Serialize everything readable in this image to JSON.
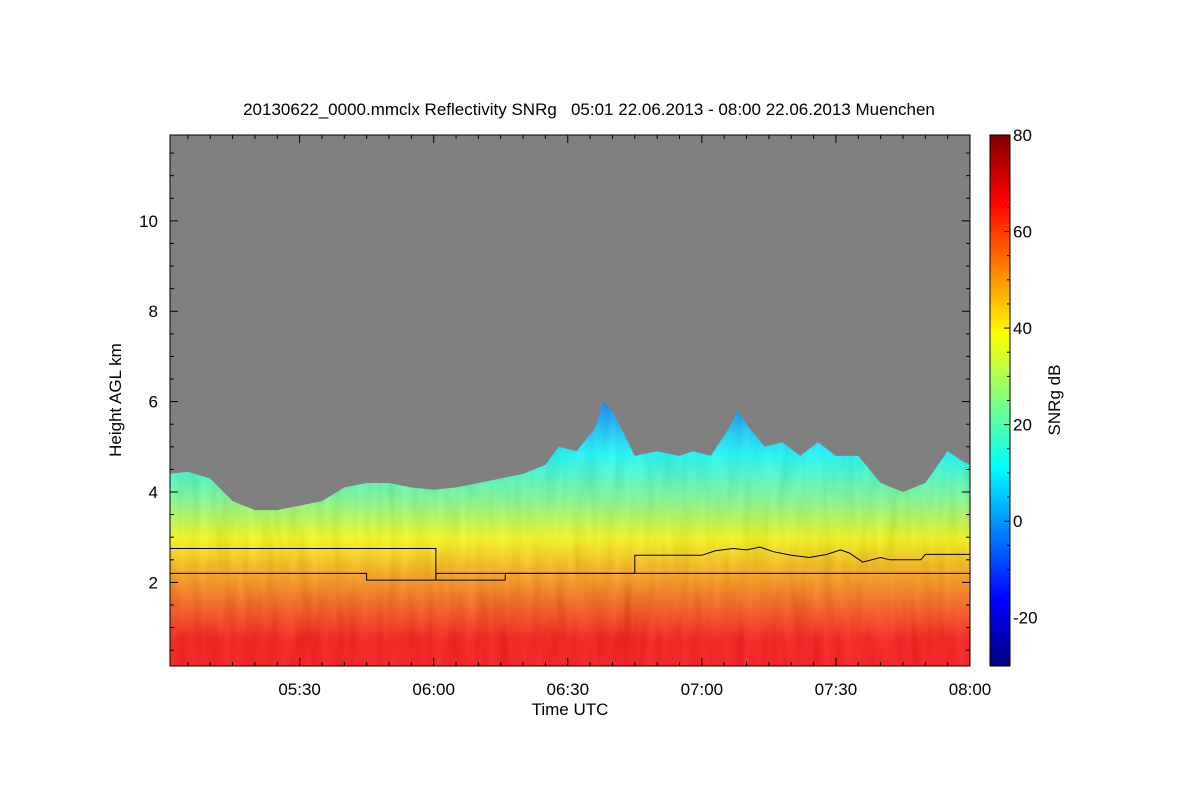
{
  "chart_data": {
    "type": "heatmap",
    "title": "20130622_0000.mmclx Reflectivity SNRg   05:01 22.06.2013 - 08:00 22.06.2013 Muenchen",
    "xlabel": "Time UTC",
    "ylabel": "Height AGL km",
    "colorbar_label": "SNRg dB",
    "x_range_minutes_utc": [
      301,
      480
    ],
    "y_range_km": [
      0.15,
      11.9
    ],
    "x_ticks": [
      {
        "minute": 330,
        "label": "05:30"
      },
      {
        "minute": 360,
        "label": "06:00"
      },
      {
        "minute": 390,
        "label": "06:30"
      },
      {
        "minute": 420,
        "label": "07:00"
      },
      {
        "minute": 450,
        "label": "07:30"
      },
      {
        "minute": 480,
        "label": "08:00"
      }
    ],
    "y_ticks": [
      {
        "value": 2,
        "label": "2"
      },
      {
        "value": 4,
        "label": "4"
      },
      {
        "value": 6,
        "label": "6"
      },
      {
        "value": 8,
        "label": "8"
      },
      {
        "value": 10,
        "label": "10"
      }
    ],
    "colorbar_range_db": [
      -30,
      80
    ],
    "colorbar_ticks": [
      {
        "value": -20,
        "label": "-20"
      },
      {
        "value": 0,
        "label": "0"
      },
      {
        "value": 20,
        "label": "20"
      },
      {
        "value": 40,
        "label": "40"
      },
      {
        "value": 60,
        "label": "60"
      },
      {
        "value": 80,
        "label": "80"
      }
    ],
    "colormap": [
      "#00007f",
      "#0000ff",
      "#007fff",
      "#00ffff",
      "#7fff7f",
      "#ffff00",
      "#ff7f00",
      "#ff0000",
      "#7f0000"
    ],
    "no_signal_color": "#808080",
    "echo_top_km": [
      {
        "t": 301,
        "h": 4.4
      },
      {
        "t": 305,
        "h": 4.45
      },
      {
        "t": 310,
        "h": 4.3
      },
      {
        "t": 315,
        "h": 3.8
      },
      {
        "t": 320,
        "h": 3.6
      },
      {
        "t": 325,
        "h": 3.6
      },
      {
        "t": 330,
        "h": 3.7
      },
      {
        "t": 335,
        "h": 3.8
      },
      {
        "t": 340,
        "h": 4.1
      },
      {
        "t": 345,
        "h": 4.2
      },
      {
        "t": 350,
        "h": 4.2
      },
      {
        "t": 355,
        "h": 4.1
      },
      {
        "t": 360,
        "h": 4.05
      },
      {
        "t": 365,
        "h": 4.1
      },
      {
        "t": 370,
        "h": 4.2
      },
      {
        "t": 375,
        "h": 4.3
      },
      {
        "t": 380,
        "h": 4.4
      },
      {
        "t": 385,
        "h": 4.6
      },
      {
        "t": 388,
        "h": 5.0
      },
      {
        "t": 392,
        "h": 4.9
      },
      {
        "t": 396,
        "h": 5.4
      },
      {
        "t": 398,
        "h": 6.0
      },
      {
        "t": 400,
        "h": 5.8
      },
      {
        "t": 405,
        "h": 4.8
      },
      {
        "t": 410,
        "h": 4.9
      },
      {
        "t": 415,
        "h": 4.8
      },
      {
        "t": 418,
        "h": 4.9
      },
      {
        "t": 422,
        "h": 4.8
      },
      {
        "t": 426,
        "h": 5.4
      },
      {
        "t": 428,
        "h": 5.8
      },
      {
        "t": 430,
        "h": 5.5
      },
      {
        "t": 434,
        "h": 5.0
      },
      {
        "t": 438,
        "h": 5.1
      },
      {
        "t": 442,
        "h": 4.8
      },
      {
        "t": 446,
        "h": 5.1
      },
      {
        "t": 450,
        "h": 4.8
      },
      {
        "t": 455,
        "h": 4.8
      },
      {
        "t": 460,
        "h": 4.2
      },
      {
        "t": 465,
        "h": 4.0
      },
      {
        "t": 470,
        "h": 4.2
      },
      {
        "t": 475,
        "h": 4.9
      },
      {
        "t": 478,
        "h": 4.7
      },
      {
        "t": 480,
        "h": 4.6
      }
    ],
    "series": [
      {
        "name": "upper layer boundary",
        "color": "#000000",
        "points": [
          {
            "t": 301,
            "h": 2.75
          },
          {
            "t": 360.5,
            "h": 2.75
          },
          {
            "t": 360.5,
            "h": 2.05
          },
          {
            "t": 376,
            "h": 2.05
          },
          {
            "t": 376,
            "h": 2.2
          },
          {
            "t": 405,
            "h": 2.2
          },
          {
            "t": 405,
            "h": 2.6
          },
          {
            "t": 420,
            "h": 2.6
          },
          {
            "t": 423,
            "h": 2.7
          },
          {
            "t": 427,
            "h": 2.75
          },
          {
            "t": 430,
            "h": 2.72
          },
          {
            "t": 433,
            "h": 2.78
          },
          {
            "t": 436,
            "h": 2.68
          },
          {
            "t": 440,
            "h": 2.6
          },
          {
            "t": 444,
            "h": 2.55
          },
          {
            "t": 448,
            "h": 2.62
          },
          {
            "t": 451,
            "h": 2.72
          },
          {
            "t": 453,
            "h": 2.65
          },
          {
            "t": 456,
            "h": 2.45
          },
          {
            "t": 458,
            "h": 2.5
          },
          {
            "t": 460,
            "h": 2.55
          },
          {
            "t": 462,
            "h": 2.5
          },
          {
            "t": 469,
            "h": 2.5
          },
          {
            "t": 470,
            "h": 2.62
          },
          {
            "t": 480,
            "h": 2.62
          }
        ]
      },
      {
        "name": "lower layer boundary",
        "color": "#000000",
        "points": [
          {
            "t": 301,
            "h": 2.2
          },
          {
            "t": 345,
            "h": 2.2
          },
          {
            "t": 345,
            "h": 2.05
          },
          {
            "t": 360.5,
            "h": 2.05
          },
          {
            "t": 360.5,
            "h": 2.2
          },
          {
            "t": 480,
            "h": 2.2
          }
        ]
      }
    ],
    "grid": false
  }
}
